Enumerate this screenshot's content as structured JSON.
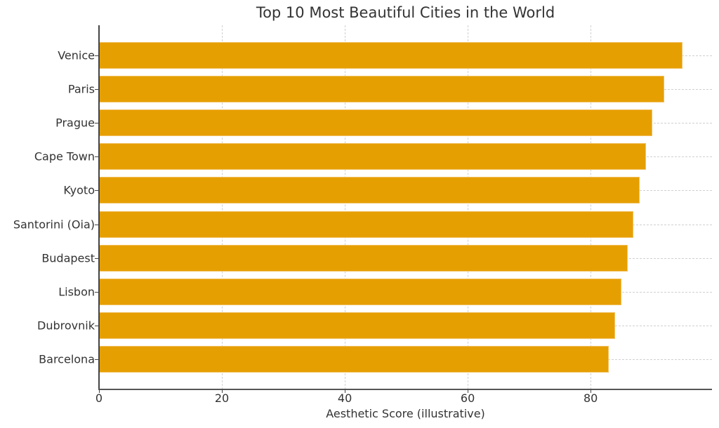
{
  "chart_data": {
    "type": "bar",
    "orientation": "horizontal",
    "title": "Top 10 Most Beautiful Cities in the World",
    "xlabel": "Aesthetic Score (illustrative)",
    "ylabel": "",
    "categories": [
      "Venice",
      "Paris",
      "Prague",
      "Cape Town",
      "Kyoto",
      "Santorini (Oia)",
      "Budapest",
      "Lisbon",
      "Dubrovnik",
      "Barcelona"
    ],
    "values": [
      95,
      92,
      90,
      89,
      88,
      87,
      86,
      85,
      84,
      83
    ],
    "xlim": [
      0,
      99.75
    ],
    "xticks": [
      "0",
      "20",
      "40",
      "60",
      "80"
    ],
    "grid": true,
    "grid_style": "dashed",
    "bar_color": "#e69f00",
    "legend": null
  }
}
